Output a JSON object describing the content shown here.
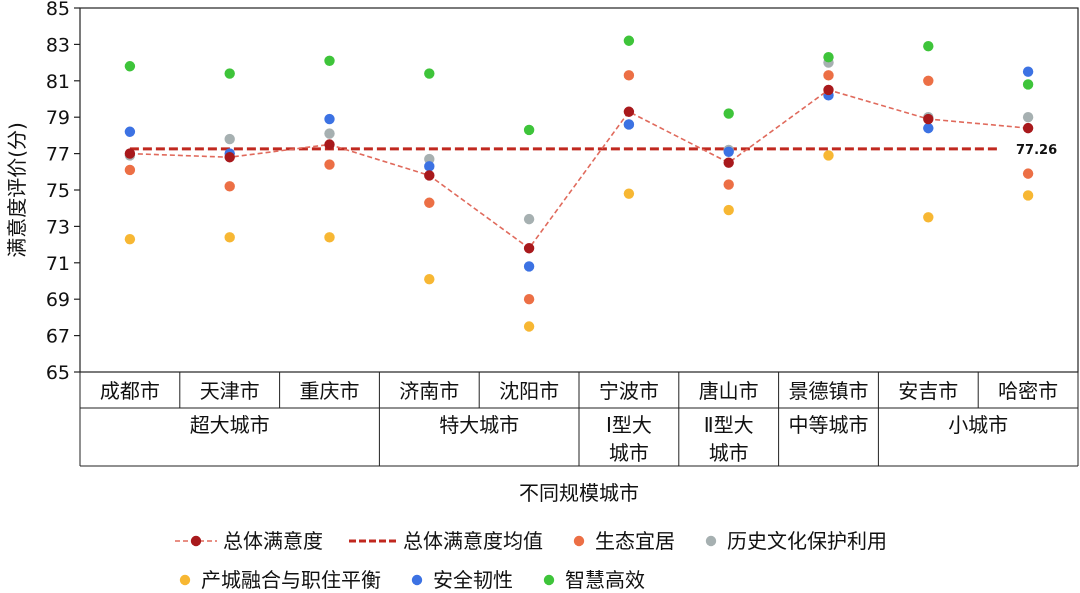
{
  "chart_data": {
    "type": "line",
    "ylabel": "满意度评价(分)",
    "xlabel": "不同规模城市",
    "ylim": [
      65,
      85
    ],
    "yticks": [
      65,
      67,
      69,
      71,
      73,
      75,
      77,
      79,
      81,
      83,
      85
    ],
    "categories": [
      "成都市",
      "天津市",
      "重庆市",
      "济南市",
      "沈阳市",
      "宁波市",
      "唐山市",
      "景德镇市",
      "安吉市",
      "哈密市"
    ],
    "groups": [
      {
        "lines": [
          "超大城市"
        ],
        "start": 0,
        "end": 2
      },
      {
        "lines": [
          "特大城市"
        ],
        "start": 3,
        "end": 4
      },
      {
        "lines": [
          "Ⅰ型大",
          "城市"
        ],
        "start": 5,
        "end": 5
      },
      {
        "lines": [
          "Ⅱ型大",
          "城市"
        ],
        "start": 6,
        "end": 6
      },
      {
        "lines": [
          "中等城市"
        ],
        "start": 7,
        "end": 7
      },
      {
        "lines": [
          "小城市"
        ],
        "start": 8,
        "end": 9
      }
    ],
    "mean": {
      "name": "总体满意度均值",
      "value": 77.26,
      "label": "77.26",
      "color": "#c0281f"
    },
    "series": [
      {
        "name": "总体满意度",
        "kind": "line",
        "color": "#a8191c",
        "line_color": "#e06a5c",
        "values": [
          77.0,
          76.8,
          77.5,
          75.8,
          71.8,
          79.3,
          76.5,
          80.5,
          78.9,
          78.4
        ]
      },
      {
        "name": "生态宜居",
        "kind": "dot",
        "color": "#ec6f45",
        "values": [
          76.1,
          75.2,
          76.4,
          74.3,
          69.0,
          81.3,
          75.3,
          81.3,
          81.0,
          75.9
        ]
      },
      {
        "name": "历史文化保护利用",
        "kind": "dot",
        "color": "#a6b0b1",
        "values": [
          76.9,
          77.8,
          78.1,
          76.7,
          73.4,
          78.6,
          77.2,
          82.0,
          79.0,
          79.0
        ]
      },
      {
        "name": "产城融合与职住平衡",
        "kind": "dot",
        "color": "#f7b733",
        "values": [
          72.3,
          72.4,
          72.4,
          70.1,
          67.5,
          74.8,
          73.9,
          76.9,
          73.5,
          74.7
        ]
      },
      {
        "name": "安全韧性",
        "kind": "dot",
        "color": "#3c72e3",
        "values": [
          78.2,
          77.0,
          78.9,
          76.3,
          70.8,
          78.6,
          77.1,
          80.2,
          78.4,
          81.5
        ]
      },
      {
        "name": "智慧高效",
        "kind": "dot",
        "color": "#3ec43a",
        "values": [
          81.8,
          81.4,
          82.1,
          81.4,
          78.3,
          83.2,
          79.2,
          82.3,
          82.9,
          80.8
        ]
      }
    ],
    "legend": {
      "placement": "bottom",
      "rows": [
        [
          "总体满意度",
          "总体满意度均值",
          "生态宜居",
          "历史文化保护利用"
        ],
        [
          "产城融合与职住平衡",
          "安全韧性",
          "智慧高效"
        ]
      ]
    },
    "grid": false
  }
}
